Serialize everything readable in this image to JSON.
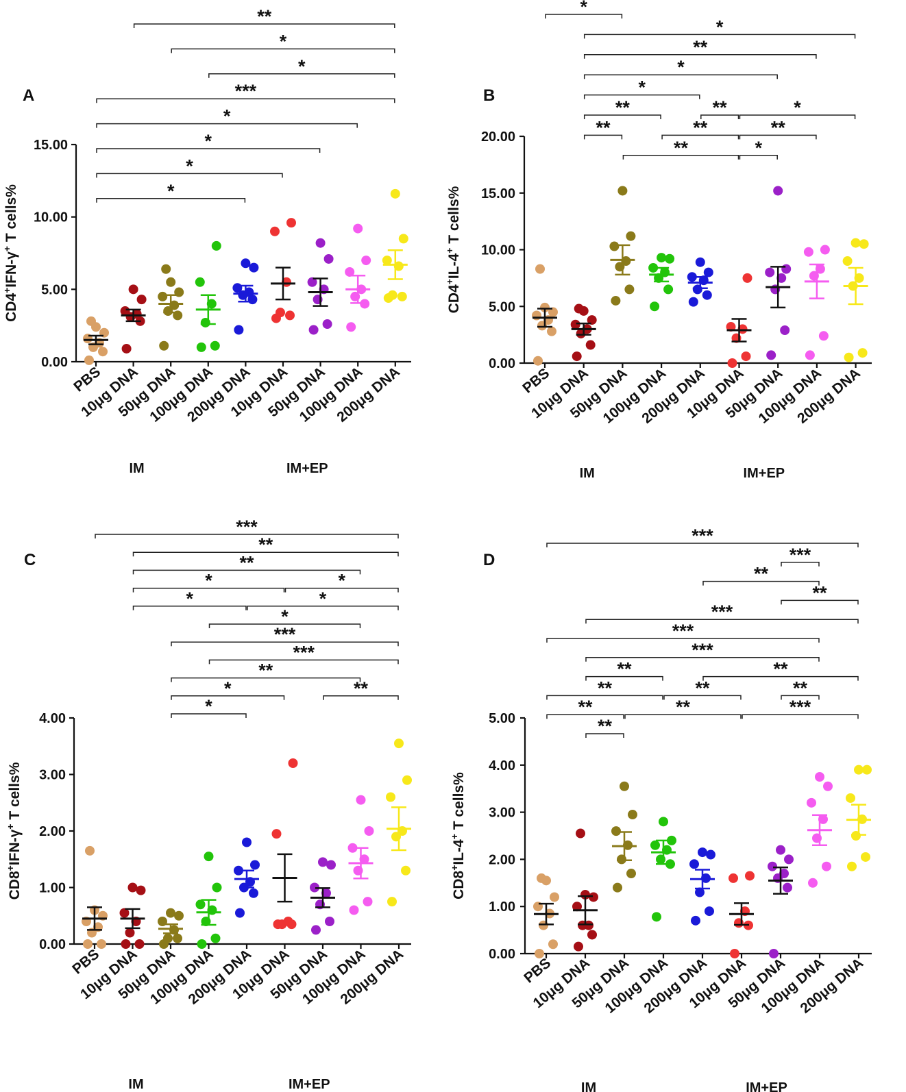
{
  "categories": [
    "PBS",
    "10μg DNA",
    "50μg DNA",
    "100μg DNA",
    "200μg DNA",
    "10μg DNA",
    "50μg DNA",
    "100μg DNA",
    "200μg DNA"
  ],
  "colors": [
    "#d9a066",
    "#a50f15",
    "#8a7a1a",
    "#22c40a",
    "#1a1ad8",
    "#ee3333",
    "#9b20c8",
    "#f55cf0",
    "#f7e81a"
  ],
  "groups": [
    {
      "label": "IM"
    },
    {
      "label": "IM+EP"
    }
  ],
  "chart_data": [
    {
      "id": "A",
      "type": "scatter",
      "panel_label": "A",
      "y_title": {
        "pre": "CD4",
        "sup1": "+",
        "mid": "IFN-γ",
        "sup2": "+",
        "post": " T cells%"
      },
      "ylim": [
        0,
        15
      ],
      "yticks": [
        0,
        5,
        10,
        15
      ],
      "ytick_labels": [
        "0.00",
        "5.00",
        "10.00",
        "15.00"
      ],
      "groups": [
        {
          "points": [
            0.1,
            0.7,
            1.0,
            1.3,
            1.6,
            2.0,
            2.4,
            2.8
          ],
          "mean": 1.5,
          "sem": 0.3
        },
        {
          "points": [
            0.9,
            2.8,
            3.1,
            3.3,
            3.5,
            4.3,
            5.0
          ],
          "mean": 3.2,
          "sem": 0.4
        },
        {
          "points": [
            1.1,
            3.2,
            3.5,
            3.9,
            4.5,
            4.8,
            5.5,
            6.4
          ],
          "mean": 4.0,
          "sem": 0.6
        },
        {
          "points": [
            1.0,
            1.1,
            2.7,
            4.0,
            5.5,
            8.0
          ],
          "mean": 3.6,
          "sem": 1.0
        },
        {
          "points": [
            2.2,
            4.3,
            4.6,
            4.8,
            5.1,
            6.5,
            6.8
          ],
          "mean": 4.7,
          "sem": 0.55
        },
        {
          "points": [
            3.0,
            3.2,
            3.4,
            5.5,
            9.0,
            9.6
          ],
          "mean": 5.4,
          "sem": 1.1
        },
        {
          "points": [
            2.2,
            2.6,
            4.3,
            5.0,
            5.5,
            7.1,
            8.2
          ],
          "mean": 4.8,
          "sem": 0.95
        },
        {
          "points": [
            2.4,
            4.0,
            4.5,
            5.0,
            6.2,
            7.0,
            9.2
          ],
          "mean": 5.0,
          "sem": 0.95
        },
        {
          "points": [
            4.4,
            4.5,
            4.6,
            6.6,
            7.0,
            8.5,
            11.6
          ],
          "mean": 6.7,
          "sem": 1.0
        }
      ],
      "significance": [
        {
          "from": 1,
          "to": 8,
          "label": "**",
          "level": 0
        },
        {
          "from": 2,
          "to": 8,
          "label": "*",
          "level": 1
        },
        {
          "from": 3,
          "to": 8,
          "label": "*",
          "level": 2
        },
        {
          "from": 0,
          "to": 8,
          "label": "***",
          "level": 3
        },
        {
          "from": 0,
          "to": 7,
          "label": "*",
          "level": 4
        },
        {
          "from": 0,
          "to": 6,
          "label": "*",
          "level": 5
        },
        {
          "from": 0,
          "to": 5,
          "label": "*",
          "level": 6
        },
        {
          "from": 0,
          "to": 4,
          "label": "*",
          "level": 7
        }
      ]
    },
    {
      "id": "B",
      "type": "scatter",
      "panel_label": "B",
      "y_title": {
        "pre": "CD4",
        "sup1": "+",
        "mid": "IL-4",
        "sup2": "+",
        "post": " T cells%"
      },
      "ylim": [
        0,
        20
      ],
      "yticks": [
        0,
        5,
        10,
        15,
        20
      ],
      "ytick_labels": [
        "0.00",
        "5.00",
        "10.00",
        "15.00",
        "20.00"
      ],
      "groups": [
        {
          "points": [
            0.2,
            2.8,
            3.3,
            3.8,
            4.2,
            4.5,
            4.9,
            8.3
          ],
          "mean": 4.0,
          "sem": 0.8
        },
        {
          "points": [
            0.6,
            1.6,
            2.6,
            3.0,
            3.4,
            3.8,
            4.6,
            4.8
          ],
          "mean": 3.0,
          "sem": 0.5
        },
        {
          "points": [
            5.5,
            6.5,
            8.5,
            9.0,
            10.3,
            11.2,
            15.2
          ],
          "mean": 9.1,
          "sem": 1.3
        },
        {
          "points": [
            5.0,
            6.5,
            7.5,
            8.0,
            8.4,
            9.2,
            9.3
          ],
          "mean": 7.8,
          "sem": 0.6
        },
        {
          "points": [
            5.4,
            6.0,
            6.5,
            7.3,
            7.6,
            8.0,
            8.9
          ],
          "mean": 7.1,
          "sem": 0.5
        },
        {
          "points": [
            0.0,
            0.6,
            2.2,
            3.0,
            3.2,
            7.5
          ],
          "mean": 2.9,
          "sem": 1.0
        },
        {
          "points": [
            0.7,
            2.9,
            6.5,
            7.5,
            8.0,
            8.3,
            15.2
          ],
          "mean": 6.7,
          "sem": 1.8
        },
        {
          "points": [
            0.7,
            2.4,
            7.7,
            8.3,
            9.8,
            10.0
          ],
          "mean": 7.2,
          "sem": 1.5
        },
        {
          "points": [
            0.5,
            0.9,
            6.8,
            7.5,
            9.0,
            10.5,
            10.6
          ],
          "mean": 6.8,
          "sem": 1.6
        }
      ],
      "significance": [
        {
          "from": 0,
          "to": 2,
          "label": "*",
          "level": 0
        },
        {
          "from": 1,
          "to": 8,
          "label": "*",
          "level": 1
        },
        {
          "from": 1,
          "to": 7,
          "label": "**",
          "level": 2
        },
        {
          "from": 1,
          "to": 6,
          "label": "*",
          "level": 3
        },
        {
          "from": 1,
          "to": 4,
          "label": "*",
          "level": 4
        },
        {
          "from": 1,
          "to": 3,
          "label": "**",
          "level": 5
        },
        {
          "from": 4,
          "to": 5,
          "label": "**",
          "level": 5
        },
        {
          "from": 5,
          "to": 8,
          "label": "*",
          "level": 5
        },
        {
          "from": 1,
          "to": 2,
          "label": "**",
          "level": 6
        },
        {
          "from": 3,
          "to": 5,
          "label": "**",
          "level": 6
        },
        {
          "from": 5,
          "to": 7,
          "label": "**",
          "level": 6
        },
        {
          "from": 2,
          "to": 5,
          "label": "**",
          "level": 7
        },
        {
          "from": 5,
          "to": 6,
          "label": "*",
          "level": 7
        }
      ]
    },
    {
      "id": "C",
      "type": "scatter",
      "panel_label": "C",
      "y_title": {
        "pre": "CD8",
        "sup1": "+",
        "mid": "IFN-γ",
        "sup2": "+",
        "post": " T cells%"
      },
      "ylim": [
        0,
        4
      ],
      "yticks": [
        0,
        1,
        2,
        3,
        4
      ],
      "ytick_labels": [
        "0.00",
        "1.00",
        "2.00",
        "3.00",
        "4.00"
      ],
      "groups": [
        {
          "points": [
            0.0,
            0.0,
            0.2,
            0.3,
            0.4,
            0.5,
            0.6,
            1.65
          ],
          "mean": 0.45,
          "sem": 0.2
        },
        {
          "points": [
            0.0,
            0.0,
            0.2,
            0.4,
            0.55,
            0.95,
            1.0
          ],
          "mean": 0.45,
          "sem": 0.17
        },
        {
          "points": [
            0.0,
            0.1,
            0.1,
            0.25,
            0.4,
            0.5,
            0.55
          ],
          "mean": 0.27,
          "sem": 0.08
        },
        {
          "points": [
            0.0,
            0.1,
            0.4,
            0.6,
            0.7,
            1.0,
            1.55
          ],
          "mean": 0.56,
          "sem": 0.22
        },
        {
          "points": [
            0.55,
            0.9,
            1.0,
            1.1,
            1.3,
            1.4,
            1.8
          ],
          "mean": 1.15,
          "sem": 0.15
        },
        {
          "points": [
            0.35,
            0.35,
            0.35,
            0.4,
            1.95,
            3.2
          ],
          "mean": 1.17,
          "sem": 0.42
        },
        {
          "points": [
            0.25,
            0.4,
            0.7,
            0.9,
            1.0,
            1.4,
            1.45
          ],
          "mean": 0.82,
          "sem": 0.17
        },
        {
          "points": [
            0.6,
            0.75,
            1.3,
            1.5,
            1.7,
            2.0,
            2.55
          ],
          "mean": 1.43,
          "sem": 0.27
        },
        {
          "points": [
            0.75,
            1.3,
            1.9,
            2.0,
            2.6,
            2.9,
            3.55
          ],
          "mean": 2.04,
          "sem": 0.38
        }
      ],
      "significance": [
        {
          "from": 0,
          "to": 8,
          "label": "***",
          "level": 0
        },
        {
          "from": 1,
          "to": 8,
          "label": "**",
          "level": 1
        },
        {
          "from": 1,
          "to": 7,
          "label": "**",
          "level": 2
        },
        {
          "from": 1,
          "to": 5,
          "label": "*",
          "level": 3
        },
        {
          "from": 5,
          "to": 8,
          "label": "*",
          "level": 3
        },
        {
          "from": 1,
          "to": 4,
          "label": "*",
          "level": 4
        },
        {
          "from": 4,
          "to": 8,
          "label": "*",
          "level": 4
        },
        {
          "from": 3,
          "to": 7,
          "label": "*",
          "level": 5
        },
        {
          "from": 2,
          "to": 8,
          "label": "***",
          "level": 6
        },
        {
          "from": 3,
          "to": 8,
          "label": "***",
          "level": 7
        },
        {
          "from": 2,
          "to": 7,
          "label": "**",
          "level": 8
        },
        {
          "from": 2,
          "to": 5,
          "label": "*",
          "level": 9
        },
        {
          "from": 6,
          "to": 8,
          "label": "**",
          "level": 9
        },
        {
          "from": 2,
          "to": 4,
          "label": "*",
          "level": 10
        }
      ]
    },
    {
      "id": "D",
      "type": "scatter",
      "panel_label": "D",
      "y_title": {
        "pre": "CD8",
        "sup1": "+",
        "mid": "IL-4",
        "sup2": "+",
        "post": " T cells%"
      },
      "ylim": [
        0,
        5
      ],
      "yticks": [
        0,
        1,
        2,
        3,
        4,
        5
      ],
      "ytick_labels": [
        "0.00",
        "1.00",
        "2.00",
        "3.00",
        "4.00",
        "5.00"
      ],
      "groups": [
        {
          "points": [
            0.0,
            0.2,
            0.6,
            0.85,
            1.0,
            1.2,
            1.55,
            1.6
          ],
          "mean": 0.84,
          "sem": 0.22
        },
        {
          "points": [
            0.15,
            0.4,
            0.6,
            0.6,
            1.0,
            1.2,
            1.25,
            2.55
          ],
          "mean": 0.92,
          "sem": 0.3
        },
        {
          "points": [
            1.4,
            1.7,
            2.0,
            2.3,
            2.6,
            2.95,
            3.55
          ],
          "mean": 2.28,
          "sem": 0.3
        },
        {
          "points": [
            0.78,
            1.9,
            2.0,
            2.2,
            2.3,
            2.4,
            2.8
          ],
          "mean": 2.15,
          "sem": 0.25
        },
        {
          "points": [
            0.7,
            0.9,
            1.3,
            1.6,
            1.9,
            2.1,
            2.15
          ],
          "mean": 1.58,
          "sem": 0.2
        },
        {
          "points": [
            0.0,
            0.6,
            0.65,
            0.9,
            1.6,
            1.65
          ],
          "mean": 0.84,
          "sem": 0.23
        },
        {
          "points": [
            0.0,
            1.4,
            1.6,
            1.7,
            1.85,
            2.0,
            2.2
          ],
          "mean": 1.55,
          "sem": 0.28
        },
        {
          "points": [
            1.5,
            1.85,
            2.45,
            2.85,
            3.2,
            3.55,
            3.75
          ],
          "mean": 2.62,
          "sem": 0.32
        },
        {
          "points": [
            1.85,
            2.05,
            2.5,
            2.85,
            3.3,
            3.9,
            3.9
          ],
          "mean": 2.84,
          "sem": 0.32
        }
      ],
      "significance": [
        {
          "from": 0,
          "to": 8,
          "label": "***",
          "level": 0
        },
        {
          "from": 6,
          "to": 7,
          "label": "***",
          "level": 1
        },
        {
          "from": 4,
          "to": 7,
          "label": "**",
          "level": 2
        },
        {
          "from": 6,
          "to": 8,
          "label": "**",
          "level": 3
        },
        {
          "from": 1,
          "to": 8,
          "label": "***",
          "level": 4
        },
        {
          "from": 0,
          "to": 7,
          "label": "***",
          "level": 5
        },
        {
          "from": 1,
          "to": 7,
          "label": "***",
          "level": 6
        },
        {
          "from": 1,
          "to": 3,
          "label": "**",
          "level": 7
        },
        {
          "from": 4,
          "to": 8,
          "label": "**",
          "level": 7
        },
        {
          "from": 0,
          "to": 3,
          "label": "**",
          "level": 8
        },
        {
          "from": 3,
          "to": 5,
          "label": "**",
          "level": 8
        },
        {
          "from": 6,
          "to": 7,
          "label": "**",
          "level": 8
        },
        {
          "from": 0,
          "to": 2,
          "label": "**",
          "level": 9
        },
        {
          "from": 2,
          "to": 5,
          "label": "**",
          "level": 9
        },
        {
          "from": 5,
          "to": 8,
          "label": "***",
          "level": 9
        },
        {
          "from": 1,
          "to": 2,
          "label": "**",
          "level": 10
        }
      ]
    }
  ]
}
